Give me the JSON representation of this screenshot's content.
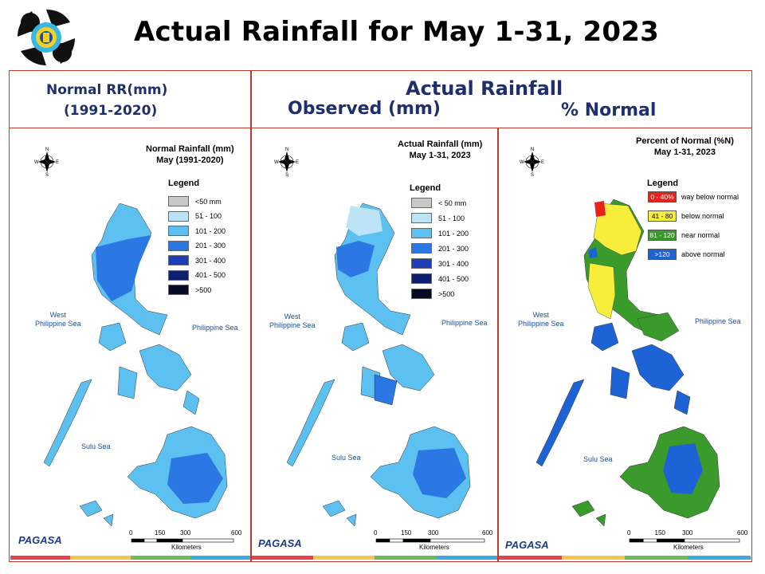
{
  "title": "Actual Rainfall for May 1-31, 2023",
  "header": {
    "normal_line1": "Normal RR(mm)",
    "normal_line2": "(1991-2020)",
    "actual": "Actual Rainfall",
    "observed": "Observed (mm)",
    "percent": "% Normal"
  },
  "panels": {
    "normal": {
      "title_line1": "Normal Rainfall (mm)",
      "title_line2": "May (1991-2020)",
      "legend_title": "Legend",
      "legend": [
        {
          "label": "<50 mm",
          "color": "#c8c8c8"
        },
        {
          "label": "51 - 100",
          "color": "#bde3f7"
        },
        {
          "label": "101 - 200",
          "color": "#5cc1f0"
        },
        {
          "label": "201 - 300",
          "color": "#2b78e4"
        },
        {
          "label": "301 - 400",
          "color": "#1c3fb8"
        },
        {
          "label": "401 - 500",
          "color": "#0d1f6e"
        },
        {
          "label": ">500",
          "color": "#060b26"
        }
      ]
    },
    "observed": {
      "title_line1": "Actual Rainfall (mm)",
      "title_line2": "May 1-31, 2023",
      "legend_title": "Legend",
      "legend": [
        {
          "label": "< 50 mm",
          "color": "#c8c8c8"
        },
        {
          "label": "51 - 100",
          "color": "#bde3f7"
        },
        {
          "label": "101 - 200",
          "color": "#5cc1f0"
        },
        {
          "label": "201 - 300",
          "color": "#2b78e4"
        },
        {
          "label": "301 - 400",
          "color": "#1c3fb8"
        },
        {
          "label": "401 - 500",
          "color": "#0d1f6e"
        },
        {
          "label": ">500",
          "color": "#060b26"
        }
      ]
    },
    "percent": {
      "title_line1": "Percent of Normal (%N)",
      "title_line2": "May 1-31, 2023",
      "legend_title": "Legend",
      "legend": [
        {
          "range": "0 - 40%",
          "label": "way below normal",
          "color": "#e8231c"
        },
        {
          "range": "41 - 80",
          "label": "below normal",
          "color": "#f7ee3c"
        },
        {
          "range": "81 - 120",
          "label": "near normal",
          "color": "#3a9a2c"
        },
        {
          "range": ">120",
          "label": "above normal",
          "color": "#1e63d6"
        }
      ]
    }
  },
  "seas": {
    "west_line1": "West",
    "west_line2": "Philippine Sea",
    "east": "Philippine Sea",
    "sulu": "Sulu Sea"
  },
  "scale": {
    "ticks": [
      "0",
      "150",
      "300",
      "600"
    ],
    "unit": "Kilometers"
  },
  "compass": {
    "n": "N",
    "s": "S",
    "e": "E",
    "w": "W"
  },
  "branding": {
    "agency": "PAGASA"
  },
  "colors": {
    "frame": "#c0392b",
    "header_text": "#1f2f6b",
    "footer": [
      "#e8434c",
      "#f2c94c",
      "#6dbb5a",
      "#3fa9e0"
    ]
  }
}
